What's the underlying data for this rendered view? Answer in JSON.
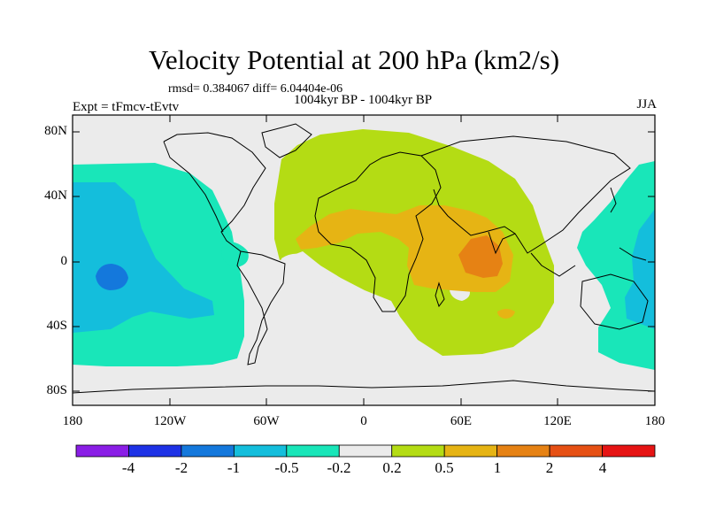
{
  "title": "Velocity Potential at 200 hPa (km2/s)",
  "stats": "rmsd= 0.384067 diff= 6.04404e-06",
  "subtitle": "1004kyr BP - 1004kyr BP",
  "expt": "Expt = tFmcv-tEvtv",
  "season": "JJA",
  "lat_labels": [
    "80N",
    "40N",
    "0",
    "40S",
    "80S"
  ],
  "lon_labels": [
    "180",
    "120W",
    "60W",
    "0",
    "60E",
    "120E",
    "180"
  ],
  "colorbar": {
    "labels": [
      "-4",
      "-2",
      "-1",
      "-0.5",
      "-0.2",
      "0.2",
      "0.5",
      "1",
      "2",
      "4"
    ],
    "colors": [
      "#8a1ee6",
      "#1e32e6",
      "#1478dc",
      "#14bedc",
      "#19e6b9",
      "#ebebeb",
      "#b4dc14",
      "#e6b414",
      "#e68214",
      "#e65014",
      "#e61414"
    ]
  }
}
